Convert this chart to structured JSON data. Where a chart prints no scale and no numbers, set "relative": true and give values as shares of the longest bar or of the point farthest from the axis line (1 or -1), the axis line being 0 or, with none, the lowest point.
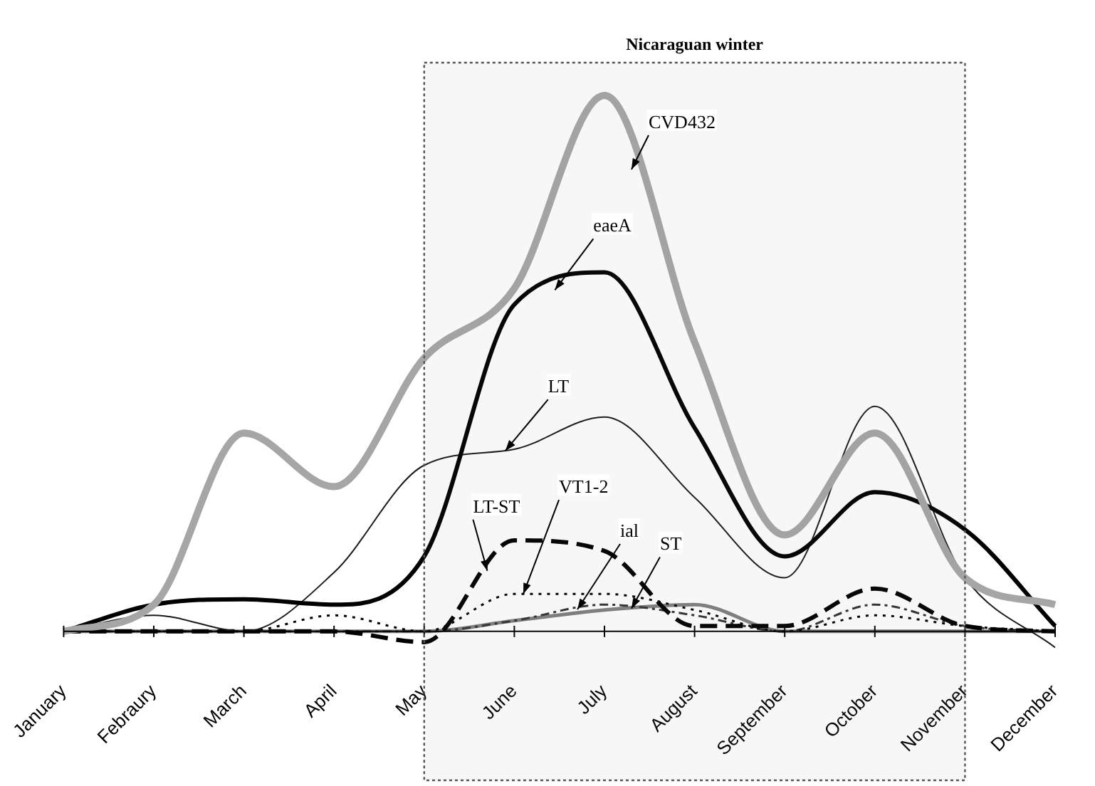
{
  "chart_data": {
    "type": "line",
    "relative": true,
    "categories": [
      "January",
      "Febraury",
      "March",
      "April",
      "May",
      "June",
      "July",
      "August",
      "September",
      "October",
      "November",
      "December"
    ],
    "series": [
      {
        "name": "CVD432",
        "color": "#a6a6a6",
        "line_style": "solid",
        "values": [
          0,
          0.05,
          0.37,
          0.27,
          0.51,
          0.64,
          1,
          0.54,
          0.18,
          0.37,
          0.1,
          0.05
        ]
      },
      {
        "name": "eaeA",
        "color": "#000000",
        "line_style": "solid",
        "values": [
          0,
          0.05,
          0.06,
          0.05,
          0.14,
          0.61,
          0.67,
          0.38,
          0.14,
          0.26,
          0.19,
          0.01
        ]
      },
      {
        "name": "LT",
        "color": "#1a1a1a",
        "line_style": "solid",
        "values": [
          0,
          0.03,
          0,
          0.11,
          0.31,
          0.34,
          0.4,
          0.25,
          0.1,
          0.42,
          0.1,
          -0.03
        ]
      },
      {
        "name": "LT-ST",
        "color": "#000000",
        "line_style": "dashed",
        "values": [
          0,
          0,
          0,
          0,
          -0.02,
          0.17,
          0.15,
          0.01,
          0.01,
          0.08,
          0.01,
          0
        ]
      },
      {
        "name": "VT1-2",
        "color": "#000000",
        "line_style": "dotted",
        "values": [
          0,
          0,
          0,
          0.03,
          0,
          0.07,
          0.07,
          0.04,
          0,
          0.03,
          0.01,
          0
        ]
      },
      {
        "name": "ial",
        "color": "#333333",
        "line_style": "dashed",
        "values": [
          0,
          0,
          0,
          0,
          0,
          0.02,
          0.05,
          0.03,
          0,
          0.05,
          0.01,
          0
        ]
      },
      {
        "name": "ST",
        "color": "#808080",
        "line_style": "solid",
        "values": [
          0,
          0,
          0,
          0,
          0,
          0.02,
          0.04,
          0.05,
          0,
          0,
          0,
          0
        ]
      }
    ],
    "bands": [
      {
        "axis": "x",
        "from": "May",
        "to": "November",
        "label": "Nicaraguan winter"
      }
    ],
    "legend": false,
    "grid": false
  }
}
